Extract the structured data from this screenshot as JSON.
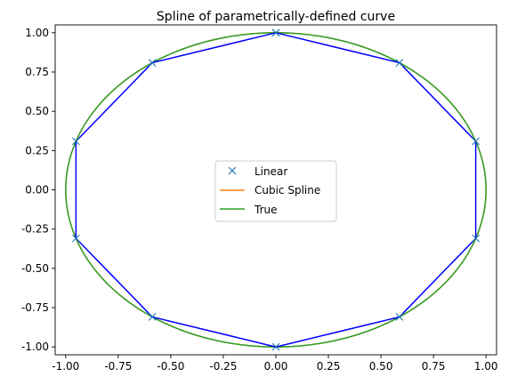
{
  "chart_data": {
    "type": "line",
    "title": "Spline of parametrically-defined curve",
    "xlabel": "",
    "ylabel": "",
    "xlim": [
      -1.05,
      1.05
    ],
    "ylim": [
      -1.05,
      1.05
    ],
    "xticks": [
      "-1.00",
      "-0.75",
      "-0.50",
      "-0.25",
      "0.00",
      "0.25",
      "0.50",
      "0.75",
      "1.00"
    ],
    "yticks": [
      "1.00",
      "0.75",
      "0.50",
      "0.25",
      "0.00",
      "-0.25",
      "-0.50",
      "-0.75",
      "-1.00"
    ],
    "grid": false,
    "legend_position": "center",
    "series": [
      {
        "name": "Linear",
        "style": "polyline-with-x-markers",
        "color": "#0000ff",
        "marker_color": "#1f77b4",
        "x": [
          0.0,
          0.588,
          0.951,
          0.951,
          0.588,
          0.0,
          -0.588,
          -0.951,
          -0.951,
          -0.588,
          0.0
        ],
        "y": [
          1.0,
          0.809,
          0.309,
          -0.309,
          -0.809,
          -1.0,
          -0.809,
          -0.309,
          0.309,
          0.809,
          1.0
        ]
      },
      {
        "name": "Cubic Spline",
        "style": "line",
        "color": "#ff7f0e",
        "shape": "unit-circle"
      },
      {
        "name": "True",
        "style": "line",
        "color": "#2ca02c",
        "shape": "unit-circle"
      }
    ]
  }
}
